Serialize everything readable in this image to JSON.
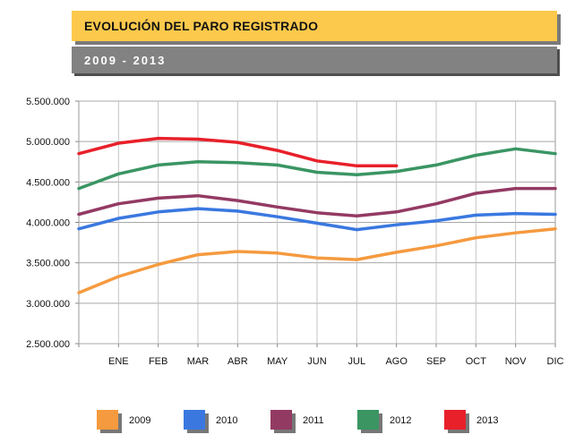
{
  "header": {
    "title": "EVOLUCIÓN DEL PARO REGISTRADO",
    "subtitle": "2009 - 2013"
  },
  "chart_data": {
    "type": "line",
    "title": "EVOLUCIÓN DEL PARO REGISTRADO",
    "subtitle": "2009 - 2013",
    "xlabel": "",
    "ylabel": "",
    "x_tick_labels": [
      "ENE",
      "FEB",
      "MAR",
      "ABR",
      "MAY",
      "JUN",
      "JUL",
      "AGO",
      "SEP",
      "OCT",
      "NOV",
      "DIC"
    ],
    "x_points": [
      "",
      "ENE",
      "FEB",
      "MAR",
      "ABR",
      "MAY",
      "JUN",
      "JUL",
      "AGO",
      "SEP",
      "OCT",
      "NOV",
      "DIC"
    ],
    "y_ticks": [
      2500000,
      3000000,
      3500000,
      4000000,
      4500000,
      5000000,
      5500000
    ],
    "y_tick_labels": [
      "2.500.000",
      "3.000.000",
      "3.500.000",
      "4.000.000",
      "4.500.000",
      "5.000.000",
      "5.500.000"
    ],
    "ylim": [
      2500000,
      5500000
    ],
    "grid": true,
    "legend_position": "bottom",
    "series": [
      {
        "name": "2009",
        "color": "#f59a3f",
        "values": [
          3130000,
          3330000,
          3480000,
          3600000,
          3640000,
          3620000,
          3560000,
          3540000,
          3630000,
          3710000,
          3810000,
          3870000,
          3920000
        ]
      },
      {
        "name": "2010",
        "color": "#3a78e0",
        "values": [
          3920000,
          4050000,
          4130000,
          4170000,
          4140000,
          4070000,
          3990000,
          3910000,
          3970000,
          4020000,
          4090000,
          4110000,
          4100000
        ]
      },
      {
        "name": "2011",
        "color": "#933a63",
        "values": [
          4100000,
          4230000,
          4300000,
          4330000,
          4270000,
          4190000,
          4120000,
          4080000,
          4130000,
          4230000,
          4360000,
          4420000,
          4420000
        ]
      },
      {
        "name": "2012",
        "color": "#3a9563",
        "values": [
          4420000,
          4600000,
          4710000,
          4750000,
          4740000,
          4710000,
          4620000,
          4590000,
          4630000,
          4710000,
          4830000,
          4910000,
          4850000
        ]
      },
      {
        "name": "2013",
        "color": "#e8202a",
        "values": [
          4850000,
          4980000,
          5040000,
          5030000,
          4990000,
          4890000,
          4760000,
          4700000,
          4700000,
          null,
          null,
          null,
          null
        ]
      }
    ]
  }
}
